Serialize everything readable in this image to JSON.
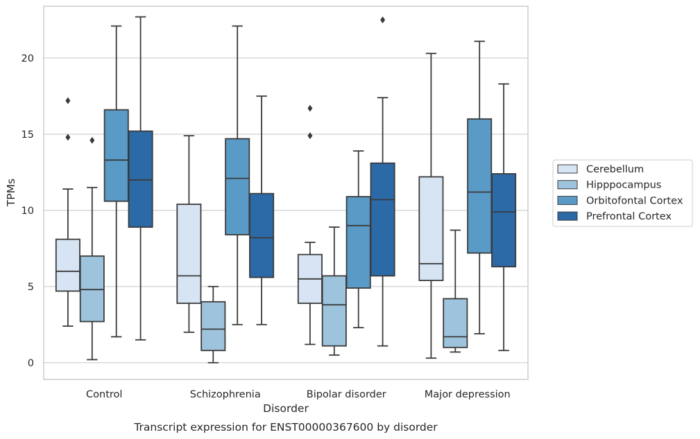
{
  "chart_data": {
    "type": "box",
    "xlabel": "Disorder",
    "ylabel": "TPMs",
    "caption": "Transcript expression for ENST00000367600 by disorder",
    "ylim": [
      -1.1,
      23.4
    ],
    "yticks": [
      0,
      5,
      10,
      15,
      20
    ],
    "grid": "horizontal",
    "legend_position": "right",
    "categories": [
      "Control",
      "Schizophrenia",
      "Bipolar disorder",
      "Major depression"
    ],
    "series": [
      {
        "name": "Cerebellum",
        "color": "#d6e4f3",
        "boxes": [
          {
            "whislo": 2.4,
            "q1": 4.7,
            "med": 6.0,
            "q3": 8.1,
            "whishi": 11.4,
            "fliers": [
              14.8,
              17.2
            ]
          },
          {
            "whislo": 2.0,
            "q1": 3.9,
            "med": 5.7,
            "q3": 10.4,
            "whishi": 14.9,
            "fliers": []
          },
          {
            "whislo": 1.2,
            "q1": 3.9,
            "med": 5.5,
            "q3": 7.1,
            "whishi": 7.9,
            "fliers": [
              14.9,
              16.7
            ]
          },
          {
            "whislo": 0.3,
            "q1": 5.4,
            "med": 6.5,
            "q3": 12.2,
            "whishi": 20.3,
            "fliers": []
          }
        ]
      },
      {
        "name": "Hipppocampus",
        "color": "#9dc4dc",
        "boxes": [
          {
            "whislo": 0.2,
            "q1": 2.7,
            "med": 4.8,
            "q3": 7.0,
            "whishi": 11.5,
            "fliers": [
              14.6
            ]
          },
          {
            "whislo": 0.0,
            "q1": 0.8,
            "med": 2.2,
            "q3": 4.0,
            "whishi": 5.0,
            "fliers": []
          },
          {
            "whislo": 0.5,
            "q1": 1.1,
            "med": 3.8,
            "q3": 5.7,
            "whishi": 8.9,
            "fliers": []
          },
          {
            "whislo": 0.7,
            "q1": 1.0,
            "med": 1.7,
            "q3": 4.2,
            "whishi": 8.7,
            "fliers": []
          }
        ]
      },
      {
        "name": "Orbitofontal Cortex",
        "color": "#5a9ac6",
        "boxes": [
          {
            "whislo": 1.7,
            "q1": 10.6,
            "med": 13.3,
            "q3": 16.6,
            "whishi": 22.1,
            "fliers": []
          },
          {
            "whislo": 2.5,
            "q1": 8.4,
            "med": 12.1,
            "q3": 14.7,
            "whishi": 22.1,
            "fliers": []
          },
          {
            "whislo": 2.3,
            "q1": 4.9,
            "med": 9.0,
            "q3": 10.9,
            "whishi": 13.9,
            "fliers": []
          },
          {
            "whislo": 1.9,
            "q1": 7.2,
            "med": 11.2,
            "q3": 16.0,
            "whishi": 21.1,
            "fliers": []
          }
        ]
      },
      {
        "name": "Prefrontal Cortex",
        "color": "#2c6aa7",
        "boxes": [
          {
            "whislo": 1.5,
            "q1": 8.9,
            "med": 12.0,
            "q3": 15.2,
            "whishi": 22.7,
            "fliers": []
          },
          {
            "whislo": 2.5,
            "q1": 5.6,
            "med": 8.2,
            "q3": 11.1,
            "whishi": 17.5,
            "fliers": []
          },
          {
            "whislo": 1.1,
            "q1": 5.7,
            "med": 10.7,
            "q3": 13.1,
            "whishi": 17.4,
            "fliers": [
              22.5
            ]
          },
          {
            "whislo": 0.8,
            "q1": 6.3,
            "med": 9.9,
            "q3": 12.4,
            "whishi": 18.3,
            "fliers": []
          }
        ]
      }
    ]
  }
}
